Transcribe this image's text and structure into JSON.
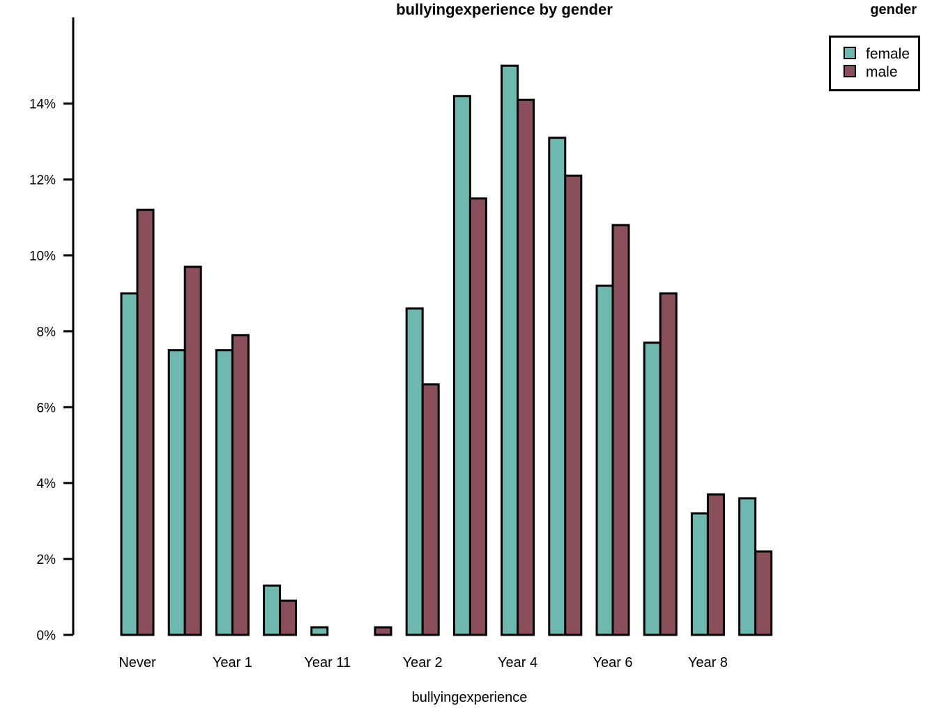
{
  "chart_data": {
    "type": "bar",
    "title": "bullyingexperience by gender",
    "xlabel": "bullyingexperience",
    "ylabel": "",
    "ylim": [
      0,
      0.155
    ],
    "yticks": [
      0,
      0.02,
      0.04,
      0.06,
      0.08,
      0.1,
      0.12,
      0.14
    ],
    "ytick_labels": [
      "0%",
      "2%",
      "4%",
      "6%",
      "8%",
      "10%",
      "12%",
      "14%"
    ],
    "categories": [
      "Never",
      "",
      "Year 1",
      "",
      "Year 11",
      "",
      "Year 2",
      "",
      "Year 4",
      "",
      "Year 6",
      "",
      "Year 8",
      ""
    ],
    "legend_title": "gender",
    "legend_position": "top-right",
    "grid": false,
    "series": [
      {
        "name": "female",
        "color": "#6db9b0",
        "values": [
          0.09,
          0.075,
          0.075,
          0.013,
          0.002,
          0.0,
          0.086,
          0.142,
          0.15,
          0.131,
          0.092,
          0.077,
          0.032,
          0.036
        ]
      },
      {
        "name": "male",
        "color": "#8b4f5c",
        "values": [
          0.112,
          0.097,
          0.079,
          0.009,
          0.0,
          0.002,
          0.066,
          0.115,
          0.141,
          0.121,
          0.108,
          0.09,
          0.037,
          0.022
        ]
      }
    ]
  }
}
